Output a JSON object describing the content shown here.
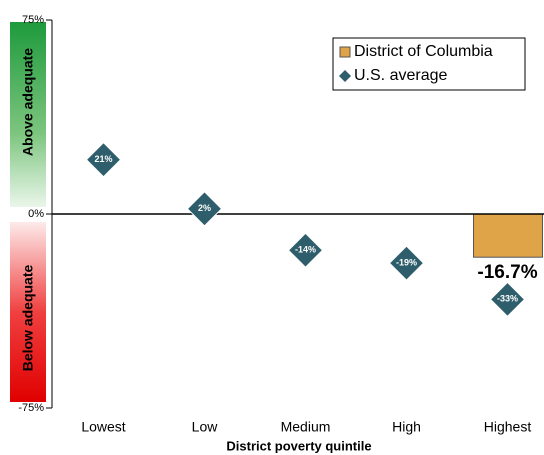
{
  "chart_data": {
    "type": "bar_and_scatter",
    "x_label": "District poverty quintile",
    "zone_labels": [
      "Above adequate",
      "Below adequate"
    ],
    "categories": [
      "Lowest",
      "Low",
      "Medium",
      "High",
      "Highest"
    ],
    "ylim": [
      -75,
      75
    ],
    "yticks": [
      {
        "value": 75,
        "label": "75%"
      },
      {
        "value": 0,
        "label": "0%"
      },
      {
        "value": -75,
        "label": "-75%"
      }
    ],
    "legend_position": "upper right",
    "series": [
      {
        "name": "District of Columbia",
        "color": "#e0a448",
        "mark": "bar",
        "values": [
          null,
          null,
          null,
          null,
          -16.7
        ],
        "value_labels": [
          null,
          null,
          null,
          null,
          "-16.7%"
        ]
      },
      {
        "name": "U.S. average",
        "color": "#2e5e6b",
        "mark": "diamond",
        "values": [
          21,
          2,
          -14,
          -19,
          -33
        ],
        "value_labels": [
          "21%",
          "2%",
          "-14%",
          "-19%",
          "-33%"
        ]
      }
    ]
  }
}
